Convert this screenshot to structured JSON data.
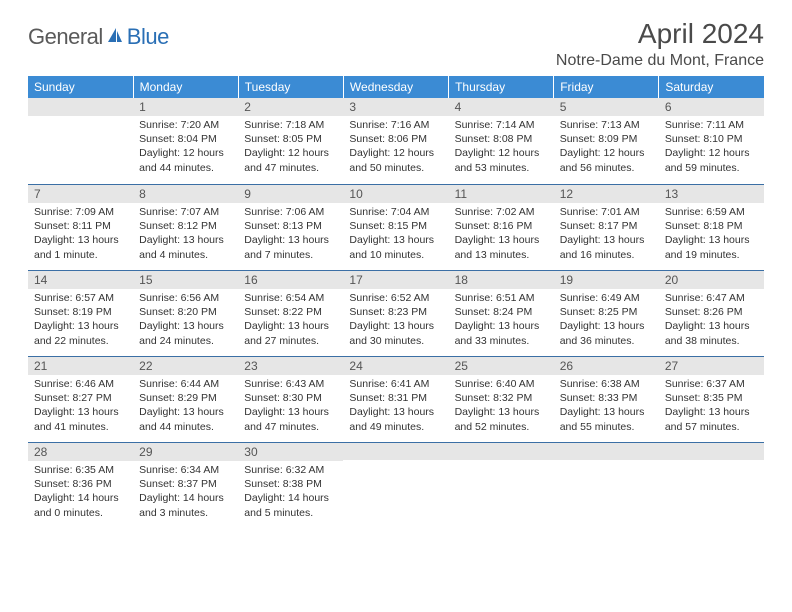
{
  "logo": {
    "part1": "General",
    "part2": "Blue"
  },
  "title": "April 2024",
  "location": "Notre-Dame du Mont, France",
  "colors": {
    "header_bg": "#3b8bd4",
    "header_text": "#ffffff",
    "daybar_bg": "#e6e6e6",
    "daybar_border": "#3b6fa5",
    "logo_gray": "#5a5a5a",
    "logo_blue": "#2a6fb5",
    "body_text": "#333333"
  },
  "day_labels": [
    "Sunday",
    "Monday",
    "Tuesday",
    "Wednesday",
    "Thursday",
    "Friday",
    "Saturday"
  ],
  "weeks": [
    [
      {
        "n": "",
        "sunrise": "",
        "sunset": "",
        "daylight": ""
      },
      {
        "n": "1",
        "sunrise": "Sunrise: 7:20 AM",
        "sunset": "Sunset: 8:04 PM",
        "daylight": "Daylight: 12 hours and 44 minutes."
      },
      {
        "n": "2",
        "sunrise": "Sunrise: 7:18 AM",
        "sunset": "Sunset: 8:05 PM",
        "daylight": "Daylight: 12 hours and 47 minutes."
      },
      {
        "n": "3",
        "sunrise": "Sunrise: 7:16 AM",
        "sunset": "Sunset: 8:06 PM",
        "daylight": "Daylight: 12 hours and 50 minutes."
      },
      {
        "n": "4",
        "sunrise": "Sunrise: 7:14 AM",
        "sunset": "Sunset: 8:08 PM",
        "daylight": "Daylight: 12 hours and 53 minutes."
      },
      {
        "n": "5",
        "sunrise": "Sunrise: 7:13 AM",
        "sunset": "Sunset: 8:09 PM",
        "daylight": "Daylight: 12 hours and 56 minutes."
      },
      {
        "n": "6",
        "sunrise": "Sunrise: 7:11 AM",
        "sunset": "Sunset: 8:10 PM",
        "daylight": "Daylight: 12 hours and 59 minutes."
      }
    ],
    [
      {
        "n": "7",
        "sunrise": "Sunrise: 7:09 AM",
        "sunset": "Sunset: 8:11 PM",
        "daylight": "Daylight: 13 hours and 1 minute."
      },
      {
        "n": "8",
        "sunrise": "Sunrise: 7:07 AM",
        "sunset": "Sunset: 8:12 PM",
        "daylight": "Daylight: 13 hours and 4 minutes."
      },
      {
        "n": "9",
        "sunrise": "Sunrise: 7:06 AM",
        "sunset": "Sunset: 8:13 PM",
        "daylight": "Daylight: 13 hours and 7 minutes."
      },
      {
        "n": "10",
        "sunrise": "Sunrise: 7:04 AM",
        "sunset": "Sunset: 8:15 PM",
        "daylight": "Daylight: 13 hours and 10 minutes."
      },
      {
        "n": "11",
        "sunrise": "Sunrise: 7:02 AM",
        "sunset": "Sunset: 8:16 PM",
        "daylight": "Daylight: 13 hours and 13 minutes."
      },
      {
        "n": "12",
        "sunrise": "Sunrise: 7:01 AM",
        "sunset": "Sunset: 8:17 PM",
        "daylight": "Daylight: 13 hours and 16 minutes."
      },
      {
        "n": "13",
        "sunrise": "Sunrise: 6:59 AM",
        "sunset": "Sunset: 8:18 PM",
        "daylight": "Daylight: 13 hours and 19 minutes."
      }
    ],
    [
      {
        "n": "14",
        "sunrise": "Sunrise: 6:57 AM",
        "sunset": "Sunset: 8:19 PM",
        "daylight": "Daylight: 13 hours and 22 minutes."
      },
      {
        "n": "15",
        "sunrise": "Sunrise: 6:56 AM",
        "sunset": "Sunset: 8:20 PM",
        "daylight": "Daylight: 13 hours and 24 minutes."
      },
      {
        "n": "16",
        "sunrise": "Sunrise: 6:54 AM",
        "sunset": "Sunset: 8:22 PM",
        "daylight": "Daylight: 13 hours and 27 minutes."
      },
      {
        "n": "17",
        "sunrise": "Sunrise: 6:52 AM",
        "sunset": "Sunset: 8:23 PM",
        "daylight": "Daylight: 13 hours and 30 minutes."
      },
      {
        "n": "18",
        "sunrise": "Sunrise: 6:51 AM",
        "sunset": "Sunset: 8:24 PM",
        "daylight": "Daylight: 13 hours and 33 minutes."
      },
      {
        "n": "19",
        "sunrise": "Sunrise: 6:49 AM",
        "sunset": "Sunset: 8:25 PM",
        "daylight": "Daylight: 13 hours and 36 minutes."
      },
      {
        "n": "20",
        "sunrise": "Sunrise: 6:47 AM",
        "sunset": "Sunset: 8:26 PM",
        "daylight": "Daylight: 13 hours and 38 minutes."
      }
    ],
    [
      {
        "n": "21",
        "sunrise": "Sunrise: 6:46 AM",
        "sunset": "Sunset: 8:27 PM",
        "daylight": "Daylight: 13 hours and 41 minutes."
      },
      {
        "n": "22",
        "sunrise": "Sunrise: 6:44 AM",
        "sunset": "Sunset: 8:29 PM",
        "daylight": "Daylight: 13 hours and 44 minutes."
      },
      {
        "n": "23",
        "sunrise": "Sunrise: 6:43 AM",
        "sunset": "Sunset: 8:30 PM",
        "daylight": "Daylight: 13 hours and 47 minutes."
      },
      {
        "n": "24",
        "sunrise": "Sunrise: 6:41 AM",
        "sunset": "Sunset: 8:31 PM",
        "daylight": "Daylight: 13 hours and 49 minutes."
      },
      {
        "n": "25",
        "sunrise": "Sunrise: 6:40 AM",
        "sunset": "Sunset: 8:32 PM",
        "daylight": "Daylight: 13 hours and 52 minutes."
      },
      {
        "n": "26",
        "sunrise": "Sunrise: 6:38 AM",
        "sunset": "Sunset: 8:33 PM",
        "daylight": "Daylight: 13 hours and 55 minutes."
      },
      {
        "n": "27",
        "sunrise": "Sunrise: 6:37 AM",
        "sunset": "Sunset: 8:35 PM",
        "daylight": "Daylight: 13 hours and 57 minutes."
      }
    ],
    [
      {
        "n": "28",
        "sunrise": "Sunrise: 6:35 AM",
        "sunset": "Sunset: 8:36 PM",
        "daylight": "Daylight: 14 hours and 0 minutes."
      },
      {
        "n": "29",
        "sunrise": "Sunrise: 6:34 AM",
        "sunset": "Sunset: 8:37 PM",
        "daylight": "Daylight: 14 hours and 3 minutes."
      },
      {
        "n": "30",
        "sunrise": "Sunrise: 6:32 AM",
        "sunset": "Sunset: 8:38 PM",
        "daylight": "Daylight: 14 hours and 5 minutes."
      },
      {
        "n": "",
        "sunrise": "",
        "sunset": "",
        "daylight": ""
      },
      {
        "n": "",
        "sunrise": "",
        "sunset": "",
        "daylight": ""
      },
      {
        "n": "",
        "sunrise": "",
        "sunset": "",
        "daylight": ""
      },
      {
        "n": "",
        "sunrise": "",
        "sunset": "",
        "daylight": ""
      }
    ]
  ]
}
